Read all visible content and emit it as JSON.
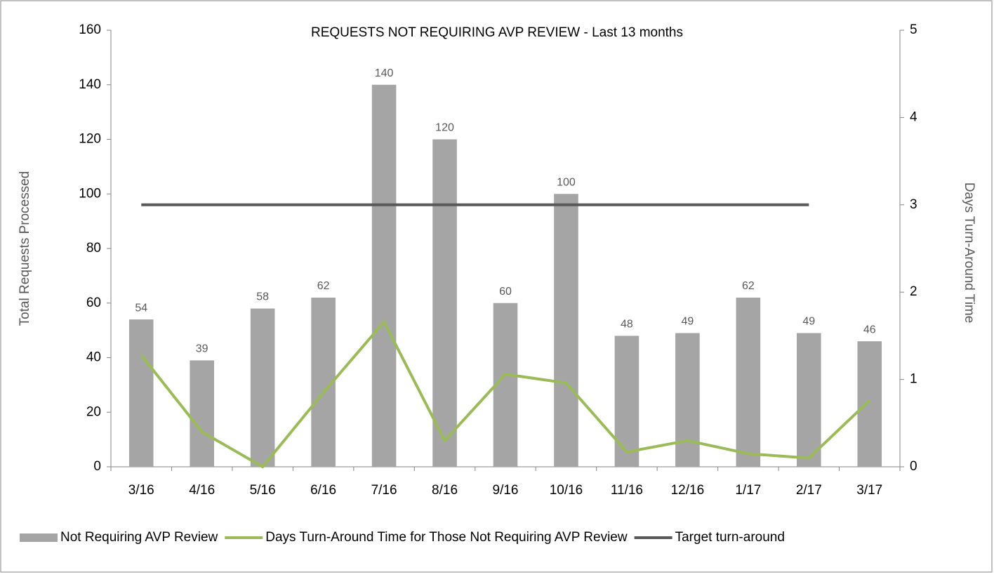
{
  "chart_data": {
    "type": "bar",
    "title": "REQUESTS NOT REQUIRING AVP REVIEW - Last 13 months",
    "ylabel": "Total Requests  Processed",
    "y2label": "Days Turn-Around Time",
    "categories": [
      "3/16",
      "4/16",
      "5/16",
      "6/16",
      "7/16",
      "8/16",
      "9/16",
      "10/16",
      "11/16",
      "12/16",
      "1/17",
      "2/17",
      "3/17"
    ],
    "ylim": [
      0,
      160
    ],
    "yticks": [
      0,
      20,
      40,
      60,
      80,
      100,
      120,
      140,
      160
    ],
    "y2lim": [
      0,
      5
    ],
    "y2ticks": [
      0,
      1,
      2,
      3,
      4,
      5
    ],
    "series": [
      {
        "name": "Not Requiring AVP Review",
        "type": "bar",
        "color": "#a5a5a5",
        "values": [
          54,
          39,
          58,
          62,
          140,
          120,
          60,
          100,
          48,
          49,
          62,
          49,
          46
        ]
      },
      {
        "name": "Days Turn-Around Time for Those Not Requiring AVP Review",
        "type": "line",
        "axis": "y2",
        "color": "#9bbb59",
        "values": [
          1.28,
          0.4,
          0,
          0.85,
          1.66,
          0.3,
          1.06,
          0.96,
          0.17,
          0.3,
          0.15,
          0.1,
          0.76
        ]
      },
      {
        "name": "Target turn-around",
        "type": "line",
        "axis": "y2",
        "color": "#595959",
        "values": [
          3,
          3,
          3,
          3,
          3,
          3,
          3,
          3,
          3,
          3,
          3,
          3,
          null
        ]
      }
    ],
    "legend": "bottom"
  }
}
